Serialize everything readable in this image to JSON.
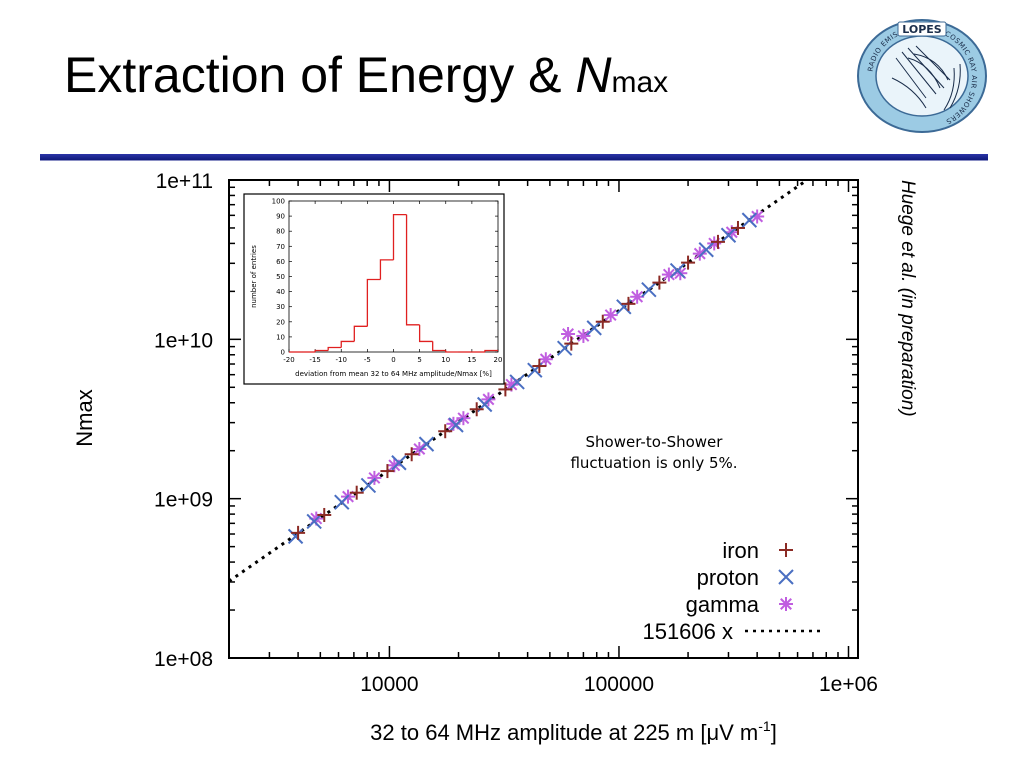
{
  "slide": {
    "title_main": "Extraction of Energy & ",
    "title_var": "N",
    "title_sub": "max",
    "logo_text": "LOPES",
    "logo_ring_text": "RADIO EMISSION FROM COSMIC RAY AIR SHOWERS",
    "credit": "Huege et al. (in preparation)",
    "note_line1": "Shower-to-Shower",
    "note_line2": "fluctuation is only 5%.",
    "colors": {
      "title_rule": "#1c2690",
      "iron": "#8b2a24",
      "proton": "#4a6fc2",
      "gamma": "#c05ee0",
      "fit": "#000000",
      "histogram": "#e02020"
    }
  },
  "chart_data": [
    {
      "type": "scatter",
      "xlabel": "32 to 64 MHz amplitude at 225 m [μV m",
      "xlabel_sup": "-1",
      "xlabel_end": "]",
      "ylabel": "Nmax",
      "xscale": "log",
      "yscale": "log",
      "xlim": [
        2000,
        1100000
      ],
      "ylim": [
        100000000,
        100000000000
      ],
      "xticks": [
        10000,
        100000,
        1000000
      ],
      "xtick_labels": [
        "10000",
        "100000",
        "1e+06"
      ],
      "yticks": [
        100000000,
        1000000000,
        10000000000,
        100000000000
      ],
      "ytick_labels": [
        "1e+08",
        "1e+09",
        "1e+10",
        "1e+11"
      ],
      "legend_position": "bottom-right",
      "fit": {
        "name": "151606 x",
        "slope": 151606
      },
      "series": [
        {
          "name": "iron",
          "marker": "plus",
          "points": [
            [
              4000,
              610000000.0
            ],
            [
              5200,
              790000000.0
            ],
            [
              7200,
              1090000000.0
            ],
            [
              9800,
              1490000000.0
            ],
            [
              12500,
              1900000000.0
            ],
            [
              17500,
              2650000000.0
            ],
            [
              24000,
              3640000000.0
            ],
            [
              32000,
              4850000000.0
            ],
            [
              45000,
              6800000000.0
            ],
            [
              62000,
              9400000000.0
            ],
            [
              85000,
              12900000000.0
            ],
            [
              110000,
              16700000000.0
            ],
            [
              150000,
              22700000000.0
            ],
            [
              200000,
              30300000000.0
            ],
            [
              270000,
              40900000000.0
            ],
            [
              330000,
              50000000000.0
            ]
          ]
        },
        {
          "name": "proton",
          "marker": "cross",
          "points": [
            [
              3900,
              580000000.0
            ],
            [
              4700,
              720000000.0
            ],
            [
              6200,
              950000000.0
            ],
            [
              8100,
              1210000000.0
            ],
            [
              11000,
              1680000000.0
            ],
            [
              14500,
              2200000000.0
            ],
            [
              19500,
              2900000000.0
            ],
            [
              26000,
              3900000000.0
            ],
            [
              36000,
              5400000000.0
            ],
            [
              43000,
              6400000000.0
            ],
            [
              58000,
              8800000000.0
            ],
            [
              78000,
              11800000000.0
            ],
            [
              105000,
              16000000000.0
            ],
            [
              135000,
              20500000000.0
            ],
            [
              180000,
              27000000000.0
            ],
            [
              240000,
              36500000000.0
            ],
            [
              300000,
              45000000000.0
            ],
            [
              370000,
              56000000000.0
            ]
          ]
        },
        {
          "name": "gamma",
          "marker": "star",
          "points": [
            [
              4800,
              750000000.0
            ],
            [
              6600,
              1030000000.0
            ],
            [
              8600,
              1350000000.0
            ],
            [
              10500,
              1620000000.0
            ],
            [
              13500,
              2050000000.0
            ],
            [
              19000,
              2950000000.0
            ],
            [
              21000,
              3200000000.0
            ],
            [
              27000,
              4200000000.0
            ],
            [
              34000,
              5200000000.0
            ],
            [
              48000,
              7500000000.0
            ],
            [
              60000,
              10800000000.0
            ],
            [
              70000,
              10500000000.0
            ],
            [
              92000,
              14200000000.0
            ],
            [
              120000,
              18500000000.0
            ],
            [
              165000,
              25500000000.0
            ],
            [
              185000,
              26000000000.0
            ],
            [
              225000,
              34500000000.0
            ],
            [
              260000,
              40000000000.0
            ],
            [
              310000,
              47000000000.0
            ],
            [
              400000,
              59000000000.0
            ]
          ]
        }
      ]
    },
    {
      "type": "bar",
      "xlabel": "deviation from mean 32 to 64 MHz amplitude/Nmax [%]",
      "ylabel": "number of entries",
      "xlim": [
        -20,
        20
      ],
      "ylim": [
        0,
        100
      ],
      "xticks": [
        -20,
        -15,
        -10,
        -5,
        0,
        5,
        10,
        15,
        20
      ],
      "yticks": [
        0,
        10,
        20,
        30,
        40,
        50,
        60,
        70,
        80,
        90,
        100
      ],
      "bin_edges": [
        -20,
        -17.5,
        -15,
        -12.5,
        -10,
        -7.5,
        -5,
        -2.5,
        0,
        2.5,
        5,
        7.5,
        10,
        12.5,
        15,
        17.5,
        20
      ],
      "counts": [
        0,
        0,
        1,
        3,
        7,
        17,
        48,
        61,
        91,
        18,
        7,
        1,
        0,
        0,
        0,
        1
      ]
    }
  ]
}
